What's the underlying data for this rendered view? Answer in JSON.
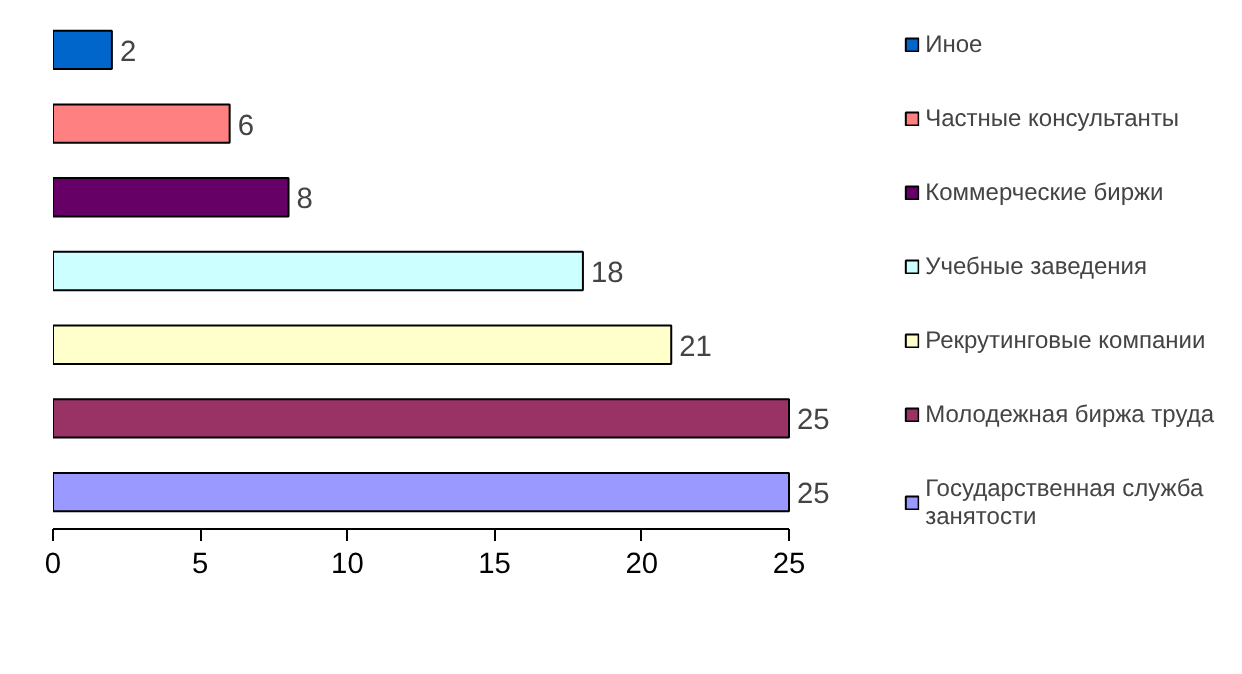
{
  "chart_data": {
    "type": "bar",
    "orientation": "horizontal",
    "stacked": true,
    "categories": [
      null,
      null,
      null,
      null,
      null,
      null,
      null
    ],
    "series": [
      {
        "name": "Иное",
        "color": "#0066cc",
        "values": [
          2,
          null,
          null,
          null,
          null,
          null,
          null
        ]
      },
      {
        "name": "Частные консультанты",
        "color": "#ff8080",
        "values": [
          null,
          6,
          null,
          null,
          null,
          null,
          null
        ]
      },
      {
        "name": "Коммерческие биржи",
        "color": "#660066",
        "values": [
          null,
          null,
          8,
          null,
          null,
          null,
          null
        ]
      },
      {
        "name": "Учебные заведения",
        "color": "#ccffff",
        "values": [
          null,
          null,
          null,
          18,
          null,
          null,
          null
        ]
      },
      {
        "name": "Рекрутинговые компании",
        "color": "#ffffcc",
        "values": [
          null,
          null,
          null,
          null,
          21,
          null,
          null
        ]
      },
      {
        "name": "Молодежная биржа труда",
        "color": "#993366",
        "values": [
          null,
          null,
          null,
          null,
          null,
          25,
          null
        ]
      },
      {
        "name": "Государственная служба занятости",
        "color": "#9999ff",
        "values": [
          null,
          null,
          null,
          null,
          null,
          null,
          25
        ]
      }
    ],
    "xlim": [
      0,
      25
    ],
    "xticks": [
      0,
      5,
      10,
      15,
      20,
      25
    ],
    "data_labels": true,
    "legend": "right",
    "grid": false,
    "tick_labels": "x"
  }
}
